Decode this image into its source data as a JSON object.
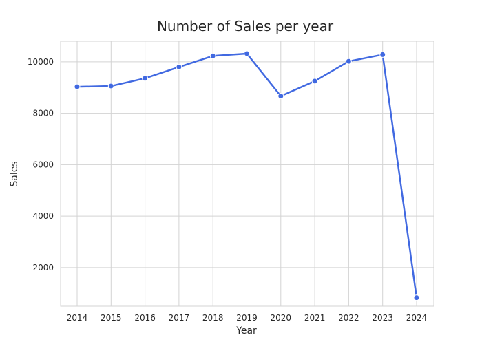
{
  "chart_data": {
    "type": "line",
    "title": "Number of Sales per year",
    "xlabel": "Year",
    "ylabel": "Sales",
    "categories": [
      "2014",
      "2015",
      "2016",
      "2017",
      "2018",
      "2019",
      "2020",
      "2021",
      "2022",
      "2023",
      "2024"
    ],
    "series": [
      {
        "values": [
          9030,
          9060,
          9360,
          9800,
          10230,
          10320,
          8670,
          9250,
          10020,
          10280,
          830
        ],
        "color": "#4169e1"
      }
    ],
    "ylim": [
      500,
      10800
    ],
    "yticks": [
      2000,
      4000,
      6000,
      8000,
      10000
    ],
    "grid": true,
    "markers": true
  }
}
